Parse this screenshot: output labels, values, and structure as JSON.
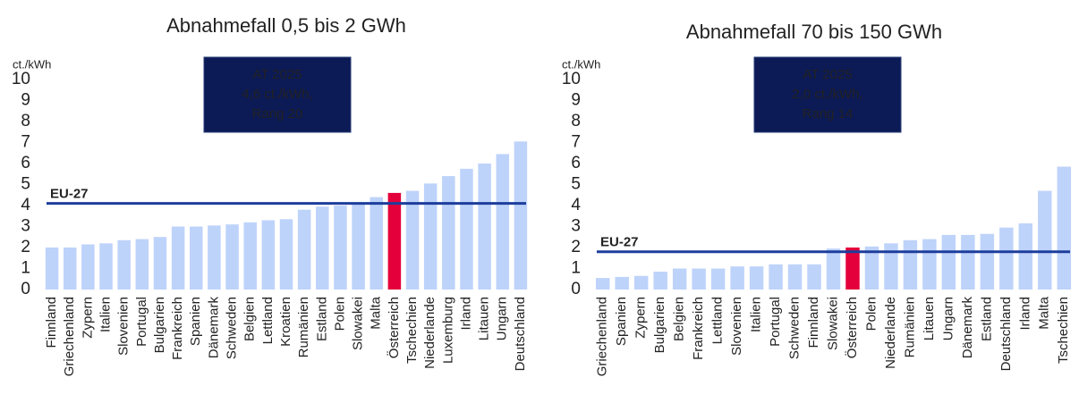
{
  "chart_data": [
    {
      "type": "bar",
      "title": "Abnahmefall 0,5 bis 2 GWh",
      "y_unit": "ct./kWh",
      "categories": [
        "Finnland",
        "Griechenland",
        "Zypern",
        "Italien",
        "Slovenien",
        "Portugal",
        "Bulgarien",
        "Frankreich",
        "Spanien",
        "Dänemark",
        "Schweden",
        "Belgien",
        "Lettland",
        "Kroatien",
        "Rumänien",
        "Estland",
        "Polen",
        "Slowakei",
        "Malta",
        "Österreich",
        "Tschechien",
        "Niederlande",
        "Luxemburg",
        "Irland",
        "Litauen",
        "Ungarn",
        "Deutschland"
      ],
      "values": [
        2.0,
        2.0,
        2.15,
        2.2,
        2.35,
        2.4,
        2.5,
        3.0,
        3.0,
        3.05,
        3.1,
        3.2,
        3.3,
        3.35,
        3.8,
        3.95,
        4.0,
        4.15,
        4.4,
        4.6,
        4.7,
        5.05,
        5.4,
        5.75,
        6.0,
        6.45,
        7.05
      ],
      "colors": [
        "#bed3fa",
        "#bed3fa",
        "#bed3fa",
        "#bed3fa",
        "#bed3fa",
        "#bed3fa",
        "#bed3fa",
        "#bed3fa",
        "#bed3fa",
        "#bed3fa",
        "#bed3fa",
        "#bed3fa",
        "#bed3fa",
        "#bed3fa",
        "#bed3fa",
        "#bed3fa",
        "#bed3fa",
        "#bed3fa",
        "#bed3fa",
        "#e4003b",
        "#bed3fa",
        "#bed3fa",
        "#bed3fa",
        "#bed3fa",
        "#bed3fa",
        "#bed3fa",
        "#bed3fa"
      ],
      "ylim": [
        0,
        10
      ],
      "yticks": [
        0,
        1,
        2,
        3,
        4,
        5,
        6,
        7,
        8,
        9,
        10
      ],
      "reference_line": {
        "label": "EU-27",
        "value": 4.1,
        "color": "#1d3e9c"
      },
      "annotation": [
        "AT 2025",
        "4,6 ct./kWh,",
        "Rang 20"
      ]
    },
    {
      "type": "bar",
      "title": "Abnahmefall 70 bis 150 GWh",
      "y_unit": "ct./kWh",
      "categories": [
        "Griechenland",
        "Spanien",
        "Zypern",
        "Bulgarien",
        "Belgien",
        "Frankreich",
        "Lettland",
        "Slovenien",
        "Italien",
        "Portugal",
        "Schweden",
        "Finnland",
        "Slowakei",
        "Österreich",
        "Polen",
        "Niederlande",
        "Rumänien",
        "Litauen",
        "Ungarn",
        "Dänemark",
        "Estland",
        "Deutschland",
        "Irland",
        "Malta",
        "Tschechien"
      ],
      "values": [
        0.55,
        0.6,
        0.65,
        0.85,
        1.0,
        1.0,
        1.0,
        1.1,
        1.1,
        1.2,
        1.2,
        1.2,
        1.95,
        2.0,
        2.05,
        2.2,
        2.35,
        2.4,
        2.6,
        2.6,
        2.65,
        2.95,
        3.15,
        4.7,
        5.85
      ],
      "colors": [
        "#bed3fa",
        "#bed3fa",
        "#bed3fa",
        "#bed3fa",
        "#bed3fa",
        "#bed3fa",
        "#bed3fa",
        "#bed3fa",
        "#bed3fa",
        "#bed3fa",
        "#bed3fa",
        "#bed3fa",
        "#bed3fa",
        "#e4003b",
        "#bed3fa",
        "#bed3fa",
        "#bed3fa",
        "#bed3fa",
        "#bed3fa",
        "#bed3fa",
        "#bed3fa",
        "#bed3fa",
        "#bed3fa",
        "#bed3fa",
        "#bed3fa"
      ],
      "ylim": [
        0,
        10
      ],
      "yticks": [
        0,
        1,
        2,
        3,
        4,
        5,
        6,
        7,
        8,
        9,
        10
      ],
      "reference_line": {
        "label": "EU-27",
        "value": 1.8,
        "color": "#1d3e9c"
      },
      "annotation": [
        "AT 2025",
        "2,0 ct./kWh,",
        "Rang 14"
      ]
    }
  ]
}
